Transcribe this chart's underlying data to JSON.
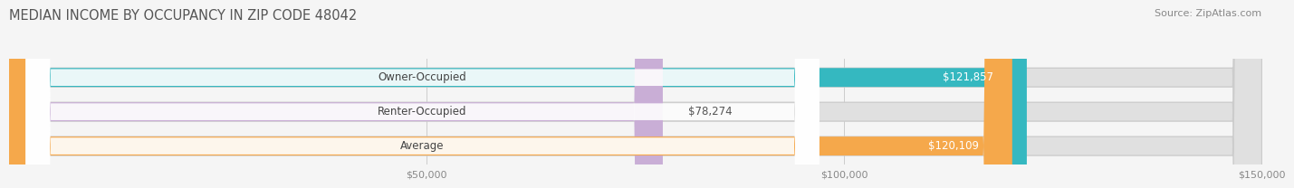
{
  "title": "MEDIAN INCOME BY OCCUPANCY IN ZIP CODE 48042",
  "source": "Source: ZipAtlas.com",
  "categories": [
    "Owner-Occupied",
    "Renter-Occupied",
    "Average"
  ],
  "values": [
    121857,
    78274,
    120109
  ],
  "bar_colors": [
    "#35b8c0",
    "#c9aed6",
    "#f5a84b"
  ],
  "value_labels": [
    "$121,857",
    "$78,274",
    "$120,109"
  ],
  "xlim": [
    0,
    150000
  ],
  "xticks": [
    0,
    50000,
    100000,
    150000
  ],
  "xticklabels": [
    "",
    "$50,000",
    "$100,000",
    "$150,000"
  ],
  "background_color": "#f5f5f5",
  "bar_bg_color": "#e0e0e0",
  "bar_height": 0.55,
  "title_fontsize": 10.5,
  "source_fontsize": 8,
  "label_fontsize": 8.5,
  "value_fontsize": 8.5
}
